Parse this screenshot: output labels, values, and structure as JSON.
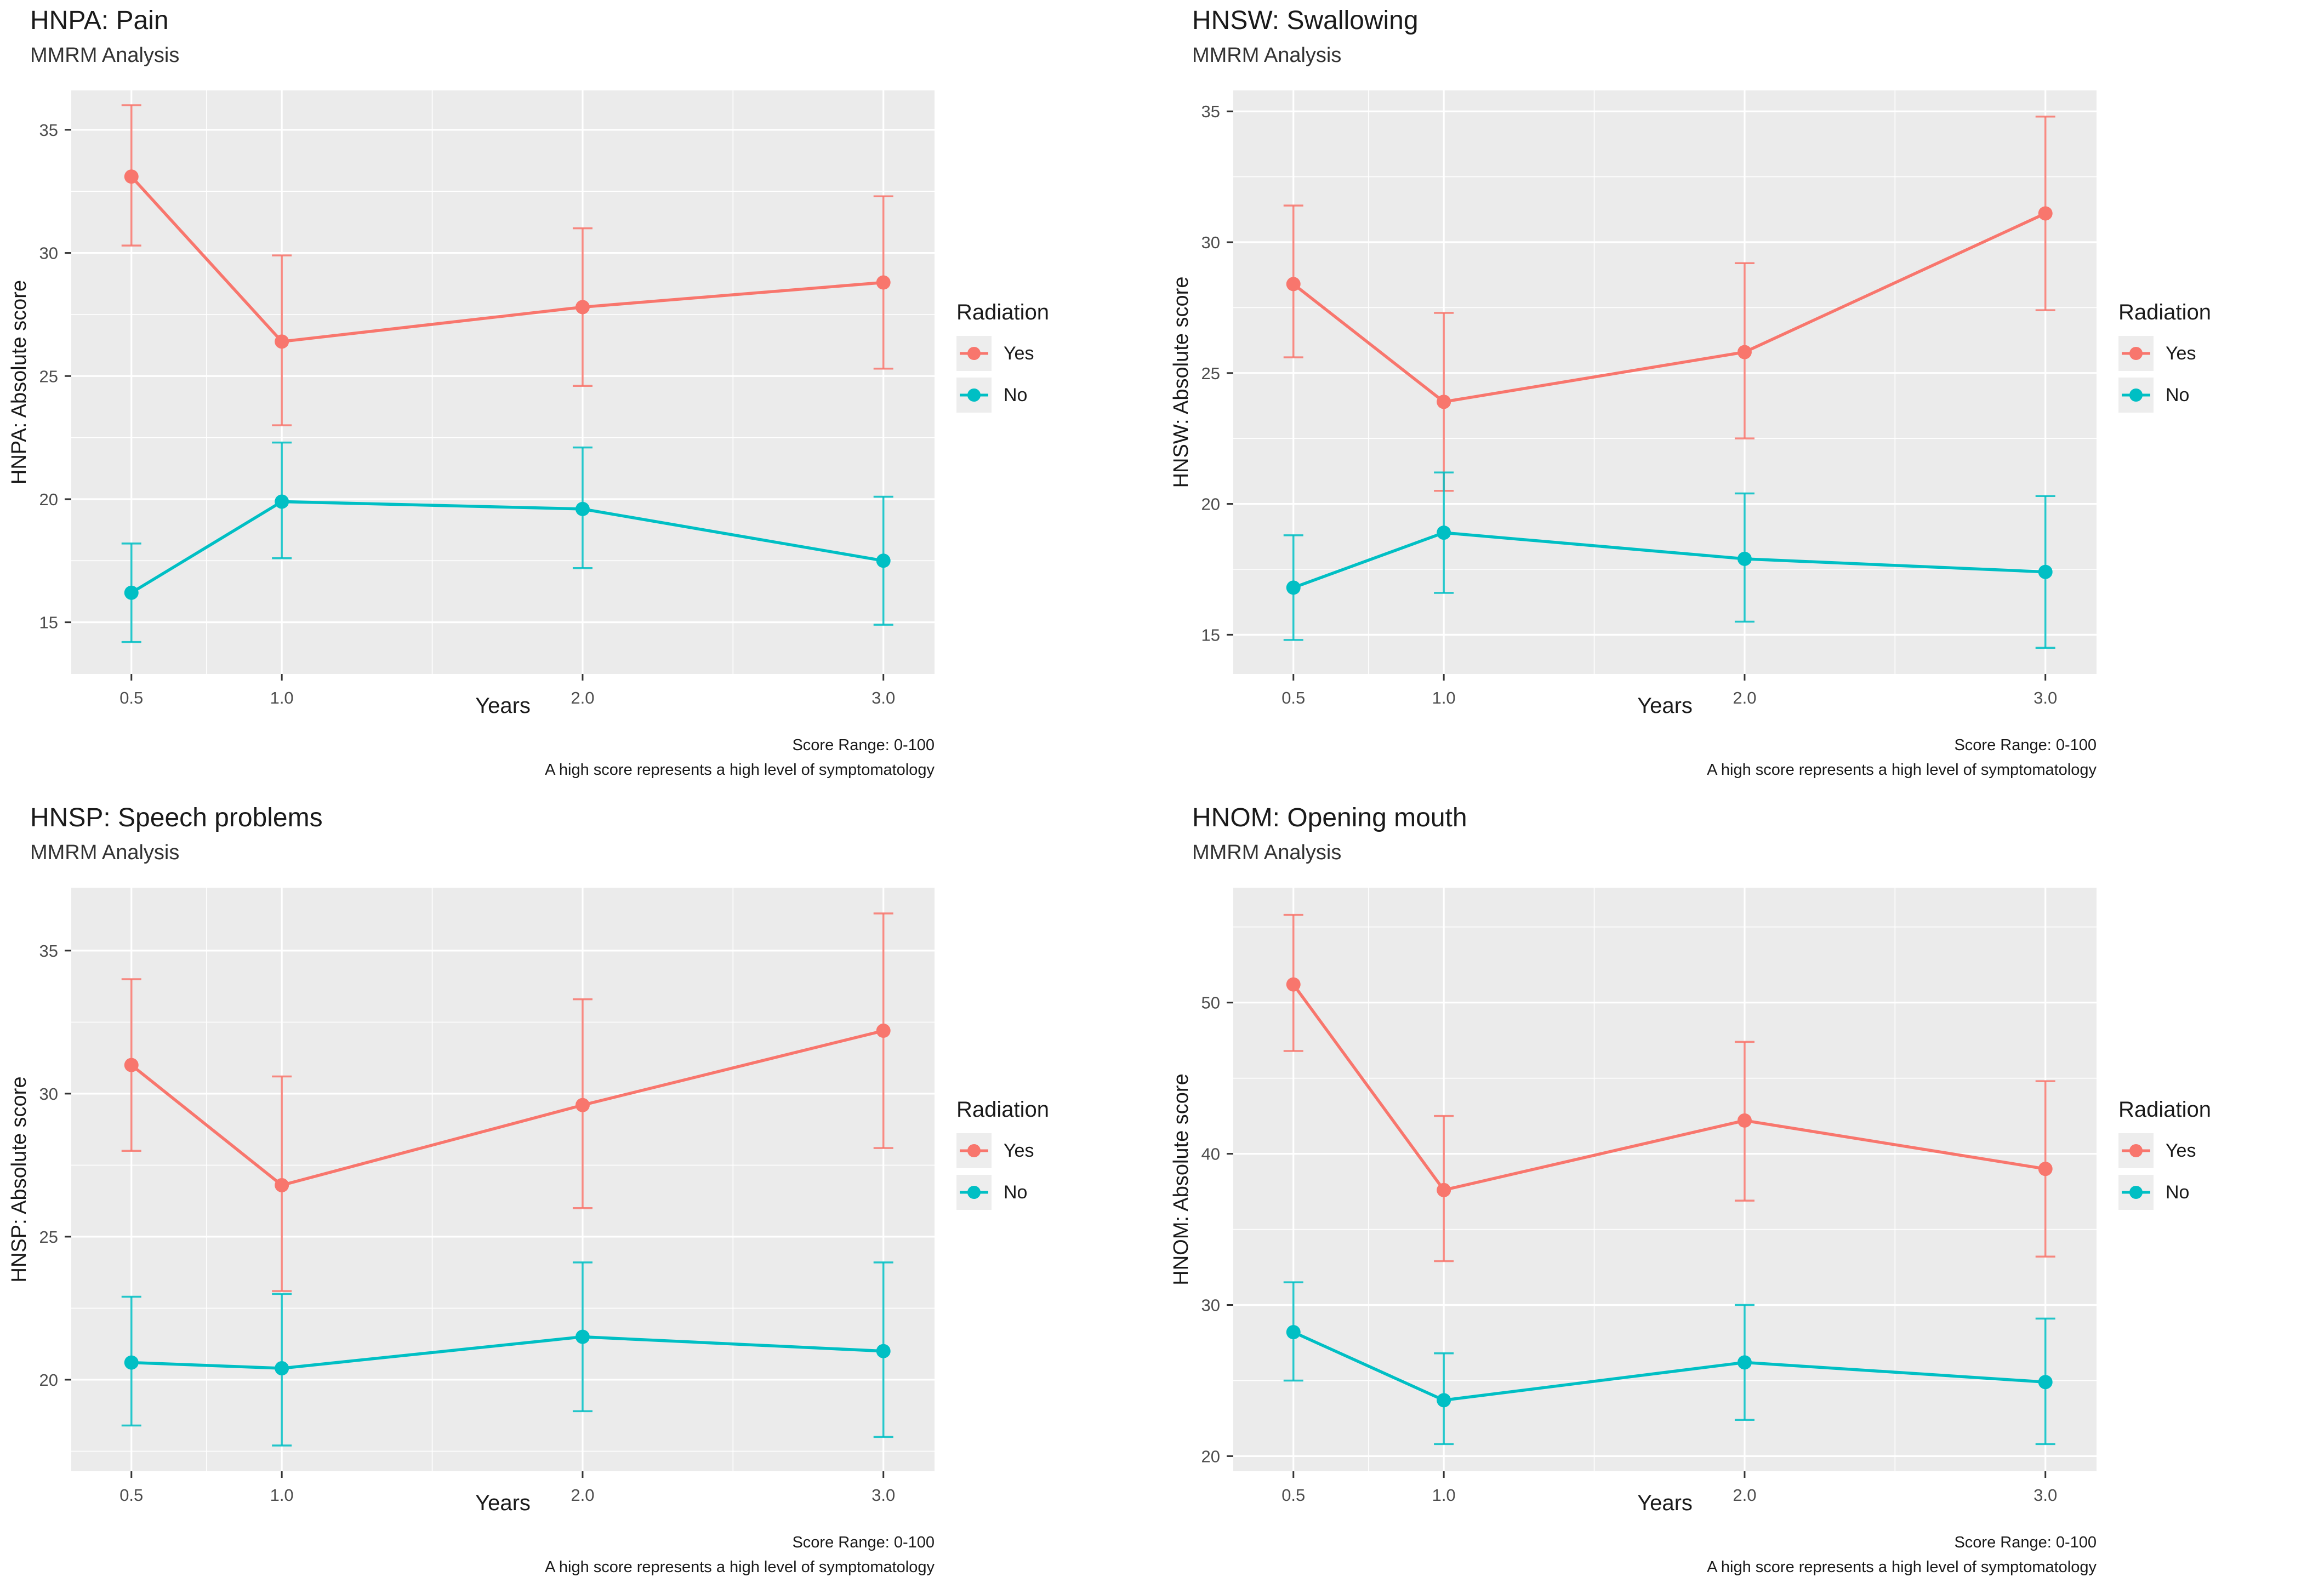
{
  "style": {
    "panel_bg": "#EBEBEB",
    "grid": "#FFFFFF",
    "tick_text": "#4D4D4D",
    "axis_tick_mark": "#333333",
    "title_text": "#1A1A1A"
  },
  "legend": {
    "title": "Radiation",
    "entries": [
      {
        "label": "Yes",
        "color": "#F8766D"
      },
      {
        "label": "No",
        "color": "#00BFC4"
      }
    ]
  },
  "caption": {
    "line1": "Score Range: 0-100",
    "line2": "A high score represents a high level of symptomatology"
  },
  "chart_data": [
    {
      "type": "line",
      "title": "HNPA: Pain",
      "subtitle": "MMRM Analysis",
      "xlabel": "Years",
      "ylabel": "HNPA: Absolute score",
      "legend_position": "right",
      "grid": true,
      "x": [
        0.5,
        1.0,
        2.0,
        3.0
      ],
      "x_tick_labels": [
        "0.5",
        "1.0",
        "2.0",
        "3.0"
      ],
      "xlim": [
        0.3,
        3.17
      ],
      "ylim": [
        12.9,
        36.6
      ],
      "yticks": [
        15,
        20,
        25,
        30,
        35
      ],
      "series": [
        {
          "name": "Yes",
          "color": "#F8766D",
          "values": [
            33.1,
            26.4,
            27.8,
            28.8
          ],
          "ci_lower": [
            30.3,
            23.0,
            24.6,
            25.3
          ],
          "ci_upper": [
            36.0,
            29.9,
            31.0,
            32.3
          ]
        },
        {
          "name": "No",
          "color": "#00BFC4",
          "values": [
            16.2,
            19.9,
            19.6,
            17.5
          ],
          "ci_lower": [
            14.2,
            17.6,
            17.2,
            14.9
          ],
          "ci_upper": [
            18.2,
            22.3,
            22.1,
            20.1
          ]
        }
      ]
    },
    {
      "type": "line",
      "title": "HNSW: Swallowing",
      "subtitle": "MMRM Analysis",
      "xlabel": "Years",
      "ylabel": "HNSW: Absolute score",
      "legend_position": "right",
      "grid": true,
      "x": [
        0.5,
        1.0,
        2.0,
        3.0
      ],
      "x_tick_labels": [
        "0.5",
        "1.0",
        "2.0",
        "3.0"
      ],
      "xlim": [
        0.3,
        3.17
      ],
      "ylim": [
        13.5,
        35.8
      ],
      "yticks": [
        15,
        20,
        25,
        30,
        35
      ],
      "series": [
        {
          "name": "Yes",
          "color": "#F8766D",
          "values": [
            28.4,
            23.9,
            25.8,
            31.1
          ],
          "ci_lower": [
            25.6,
            20.5,
            22.5,
            27.4
          ],
          "ci_upper": [
            31.4,
            27.3,
            29.2,
            34.8
          ]
        },
        {
          "name": "No",
          "color": "#00BFC4",
          "values": [
            16.8,
            18.9,
            17.9,
            17.4
          ],
          "ci_lower": [
            14.8,
            16.6,
            15.5,
            14.5
          ],
          "ci_upper": [
            18.8,
            21.2,
            20.4,
            20.3
          ]
        }
      ]
    },
    {
      "type": "line",
      "title": "HNSP: Speech problems",
      "subtitle": "MMRM Analysis",
      "xlabel": "Years",
      "ylabel": "HNSP: Absolute score",
      "legend_position": "right",
      "grid": true,
      "x": [
        0.5,
        1.0,
        2.0,
        3.0
      ],
      "x_tick_labels": [
        "0.5",
        "1.0",
        "2.0",
        "3.0"
      ],
      "xlim": [
        0.3,
        3.17
      ],
      "ylim": [
        16.8,
        37.2
      ],
      "yticks": [
        20,
        25,
        30,
        35
      ],
      "series": [
        {
          "name": "Yes",
          "color": "#F8766D",
          "values": [
            31.0,
            26.8,
            29.6,
            32.2
          ],
          "ci_lower": [
            28.0,
            23.1,
            26.0,
            28.1
          ],
          "ci_upper": [
            34.0,
            30.6,
            33.3,
            36.3
          ]
        },
        {
          "name": "No",
          "color": "#00BFC4",
          "values": [
            20.6,
            20.4,
            21.5,
            21.0
          ],
          "ci_lower": [
            18.4,
            17.7,
            18.9,
            18.0
          ],
          "ci_upper": [
            22.9,
            23.0,
            24.1,
            24.1
          ]
        }
      ]
    },
    {
      "type": "line",
      "title": "HNOM: Opening mouth",
      "subtitle": "MMRM Analysis",
      "xlabel": "Years",
      "ylabel": "HNOM: Absolute score",
      "legend_position": "right",
      "grid": true,
      "x": [
        0.5,
        1.0,
        2.0,
        3.0
      ],
      "x_tick_labels": [
        "0.5",
        "1.0",
        "2.0",
        "3.0"
      ],
      "xlim": [
        0.3,
        3.17
      ],
      "ylim": [
        19.0,
        57.6
      ],
      "yticks": [
        20,
        30,
        40,
        50
      ],
      "series": [
        {
          "name": "Yes",
          "color": "#F8766D",
          "values": [
            51.2,
            37.6,
            42.2,
            39.0
          ],
          "ci_lower": [
            46.8,
            32.9,
            36.9,
            33.2
          ],
          "ci_upper": [
            55.8,
            42.5,
            47.4,
            44.8
          ]
        },
        {
          "name": "No",
          "color": "#00BFC4",
          "values": [
            28.2,
            23.7,
            26.2,
            24.9
          ],
          "ci_lower": [
            25.0,
            20.8,
            22.4,
            20.8
          ],
          "ci_upper": [
            31.5,
            26.8,
            30.0,
            29.1
          ]
        }
      ]
    }
  ]
}
